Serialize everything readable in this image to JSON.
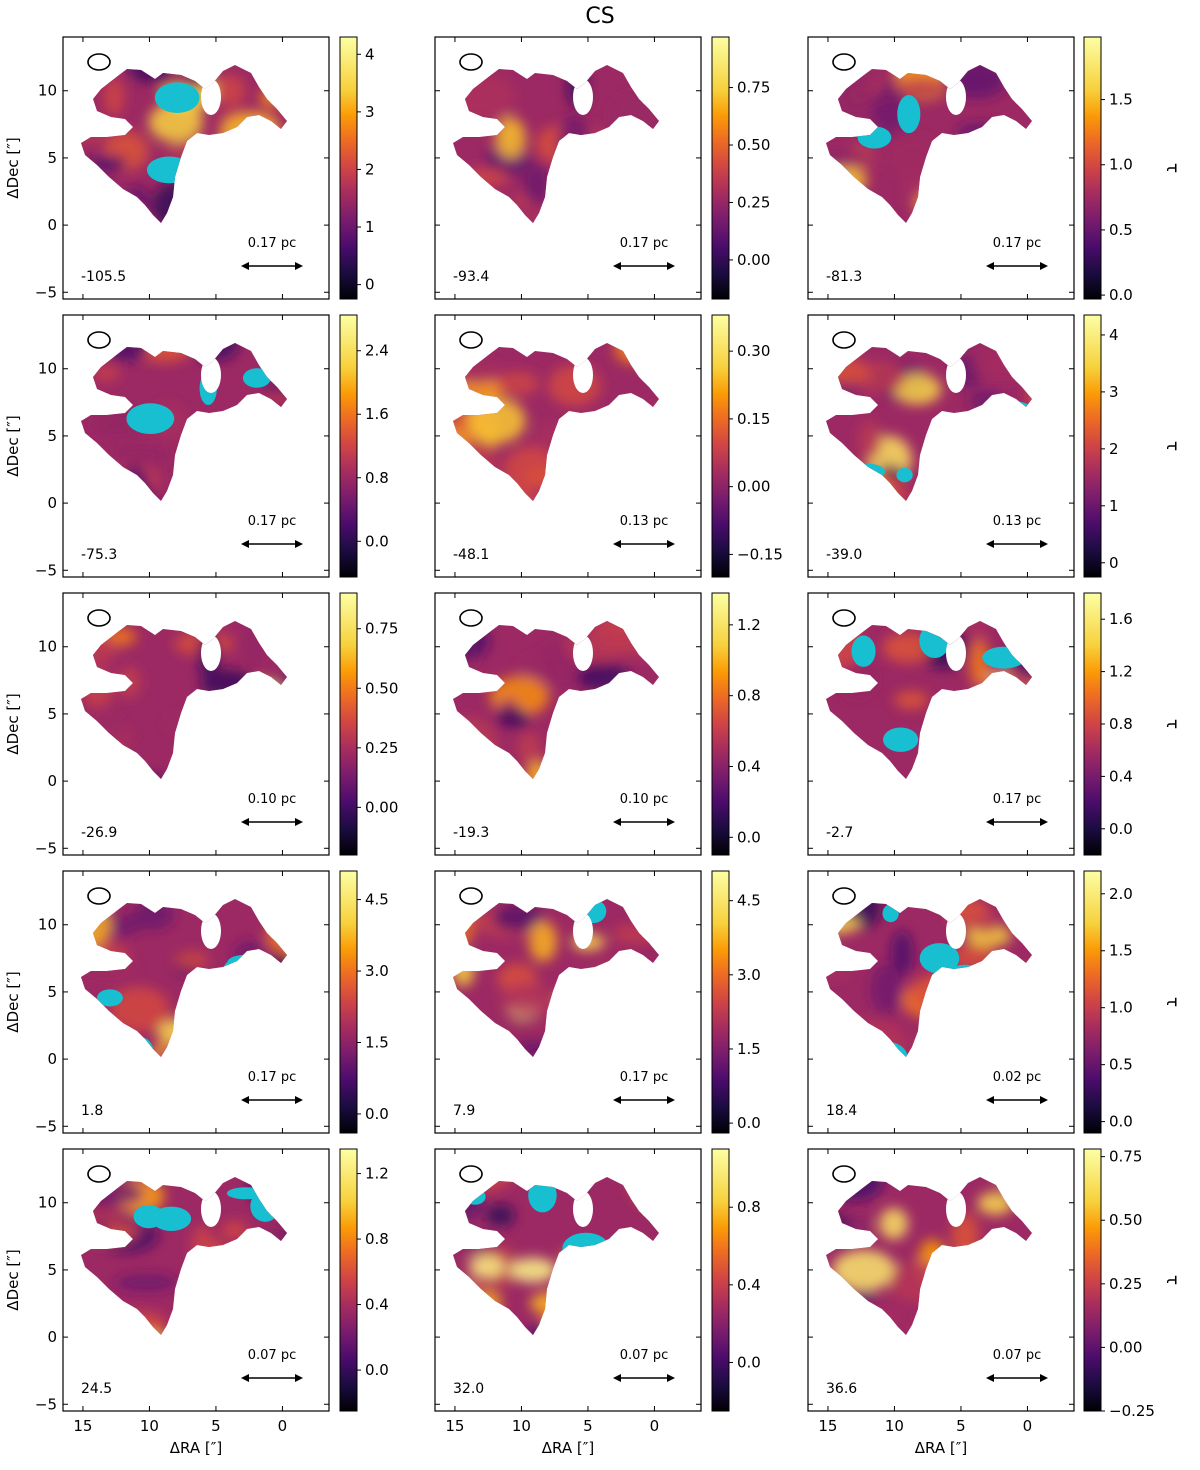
{
  "figure_title": "CS",
  "axis_labels": {
    "x": "ΔRA [″]",
    "y": "ΔDec [″]",
    "colorbar": "τ"
  },
  "colors": {
    "saturated_mask": "#17bfd0",
    "colormap": "inferno",
    "frame": "#000000"
  },
  "chart_data": [
    {
      "type": "heatmap",
      "panel": 1,
      "velocity_label": "-105.5",
      "scale_bar_label": "0.17 pc",
      "colorbar_range": [
        -0.25,
        4.3
      ],
      "colorbar_ticks": [
        "0",
        "1",
        "2",
        "3",
        "4"
      ],
      "colorbar_tick_values": [
        0,
        1,
        2,
        3,
        4
      ],
      "saturated_regions": true
    },
    {
      "type": "heatmap",
      "panel": 2,
      "velocity_label": "-93.4",
      "scale_bar_label": "0.17 pc",
      "colorbar_range": [
        -0.17,
        0.97
      ],
      "colorbar_ticks": [
        "0.00",
        "0.25",
        "0.50",
        "0.75"
      ],
      "colorbar_tick_values": [
        0,
        0.25,
        0.5,
        0.75
      ],
      "saturated_regions": false
    },
    {
      "type": "heatmap",
      "panel": 3,
      "velocity_label": "-81.3",
      "scale_bar_label": "0.17 pc",
      "colorbar_range": [
        -0.03,
        1.98
      ],
      "colorbar_ticks": [
        "0.0",
        "0.5",
        "1.0",
        "1.5"
      ],
      "colorbar_tick_values": [
        0,
        0.5,
        1,
        1.5
      ],
      "saturated_regions": true
    },
    {
      "type": "heatmap",
      "panel": 4,
      "velocity_label": "-75.3",
      "scale_bar_label": "0.17 pc",
      "colorbar_range": [
        -0.45,
        2.85
      ],
      "colorbar_ticks": [
        "0.0",
        "0.8",
        "1.6",
        "2.4"
      ],
      "colorbar_tick_values": [
        0,
        0.8,
        1.6,
        2.4
      ],
      "saturated_regions": true
    },
    {
      "type": "heatmap",
      "panel": 5,
      "velocity_label": "-48.1",
      "scale_bar_label": "0.13 pc",
      "colorbar_range": [
        -0.2,
        0.38
      ],
      "colorbar_ticks": [
        "−0.15",
        "0.00",
        "0.15",
        "0.30"
      ],
      "colorbar_tick_values": [
        -0.15,
        0,
        0.15,
        0.3
      ],
      "saturated_regions": false
    },
    {
      "type": "heatmap",
      "panel": 6,
      "velocity_label": "-39.0",
      "scale_bar_label": "0.13 pc",
      "colorbar_range": [
        -0.25,
        4.35
      ],
      "colorbar_ticks": [
        "0",
        "1",
        "2",
        "3",
        "4"
      ],
      "colorbar_tick_values": [
        0,
        1,
        2,
        3,
        4
      ],
      "saturated_regions": true
    },
    {
      "type": "heatmap",
      "panel": 7,
      "velocity_label": "-26.9",
      "scale_bar_label": "0.10 pc",
      "colorbar_range": [
        -0.2,
        0.9
      ],
      "colorbar_ticks": [
        "0.00",
        "0.25",
        "0.50",
        "0.75"
      ],
      "colorbar_tick_values": [
        0,
        0.25,
        0.5,
        0.75
      ],
      "saturated_regions": false
    },
    {
      "type": "heatmap",
      "panel": 8,
      "velocity_label": "-19.3",
      "scale_bar_label": "0.10 pc",
      "colorbar_range": [
        -0.1,
        1.38
      ],
      "colorbar_ticks": [
        "0.0",
        "0.4",
        "0.8",
        "1.2"
      ],
      "colorbar_tick_values": [
        0,
        0.4,
        0.8,
        1.2
      ],
      "saturated_regions": false
    },
    {
      "type": "heatmap",
      "panel": 9,
      "velocity_label": "-2.7",
      "scale_bar_label": "0.17 pc",
      "colorbar_range": [
        -0.2,
        1.8
      ],
      "colorbar_ticks": [
        "0.0",
        "0.4",
        "0.8",
        "1.2",
        "1.6"
      ],
      "colorbar_tick_values": [
        0,
        0.4,
        0.8,
        1.2,
        1.6
      ],
      "saturated_regions": true
    },
    {
      "type": "heatmap",
      "panel": 10,
      "velocity_label": "1.8",
      "scale_bar_label": "0.17 pc",
      "colorbar_range": [
        -0.4,
        5.1
      ],
      "colorbar_ticks": [
        "0.0",
        "1.5",
        "3.0",
        "4.5"
      ],
      "colorbar_tick_values": [
        0,
        1.5,
        3,
        4.5
      ],
      "saturated_regions": true
    },
    {
      "type": "heatmap",
      "panel": 11,
      "velocity_label": "7.9",
      "scale_bar_label": "0.17 pc",
      "colorbar_range": [
        -0.2,
        5.1
      ],
      "colorbar_ticks": [
        "0.0",
        "1.5",
        "3.0",
        "4.5"
      ],
      "colorbar_tick_values": [
        0,
        1.5,
        3,
        4.5
      ],
      "saturated_regions": true
    },
    {
      "type": "heatmap",
      "panel": 12,
      "velocity_label": "18.4",
      "scale_bar_label": "0.02 pc",
      "colorbar_range": [
        -0.1,
        2.2
      ],
      "colorbar_ticks": [
        "0.0",
        "0.5",
        "1.0",
        "1.5",
        "2.0"
      ],
      "colorbar_tick_values": [
        0,
        0.5,
        1,
        1.5,
        2
      ],
      "saturated_regions": true
    },
    {
      "type": "heatmap",
      "panel": 13,
      "velocity_label": "24.5",
      "scale_bar_label": "0.07 pc",
      "colorbar_range": [
        -0.25,
        1.35
      ],
      "colorbar_ticks": [
        "0.0",
        "0.4",
        "0.8",
        "1.2"
      ],
      "colorbar_tick_values": [
        0,
        0.4,
        0.8,
        1.2
      ],
      "saturated_regions": true
    },
    {
      "type": "heatmap",
      "panel": 14,
      "velocity_label": "32.0",
      "scale_bar_label": "0.07 pc",
      "colorbar_range": [
        -0.25,
        1.1
      ],
      "colorbar_ticks": [
        "0.0",
        "0.4",
        "0.8"
      ],
      "colorbar_tick_values": [
        0,
        0.4,
        0.8
      ],
      "saturated_regions": true
    },
    {
      "type": "heatmap",
      "panel": 15,
      "velocity_label": "36.6",
      "scale_bar_label": "0.07 pc",
      "colorbar_range": [
        -0.25,
        0.78
      ],
      "colorbar_ticks": [
        "−0.25",
        "0.00",
        "0.25",
        "0.50",
        "0.75"
      ],
      "colorbar_tick_values": [
        -0.25,
        0,
        0.25,
        0.5,
        0.75
      ],
      "saturated_regions": false
    }
  ],
  "shared_axes": {
    "x_ticks": [
      "15",
      "10",
      "5",
      "0"
    ],
    "x_tick_values": [
      15,
      10,
      5,
      0
    ],
    "y_ticks": [
      "−5",
      "0",
      "5",
      "10"
    ],
    "y_tick_values": [
      -5,
      0,
      5,
      10
    ],
    "xlim": [
      16.5,
      -3.5
    ],
    "ylim": [
      -5.5,
      14.0
    ],
    "grid": false
  }
}
